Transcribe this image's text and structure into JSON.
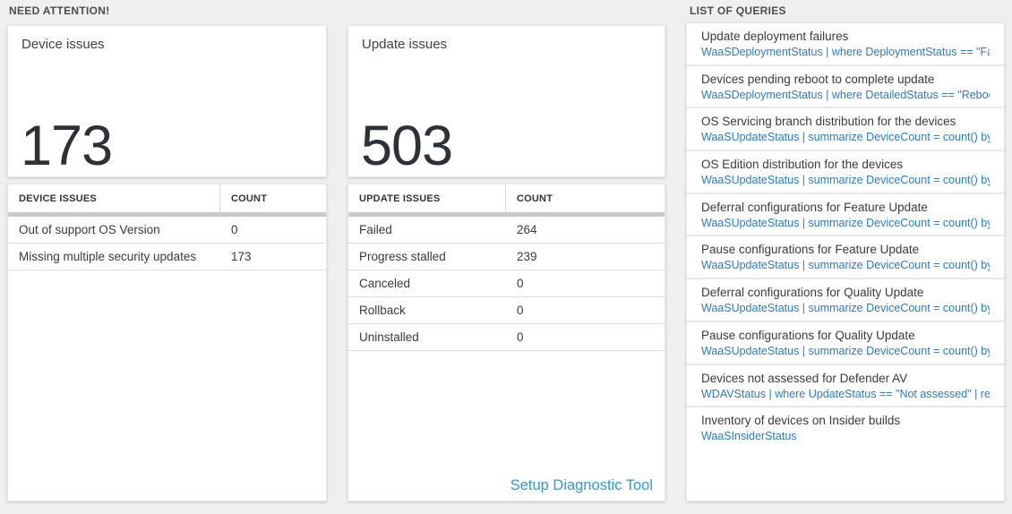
{
  "colors": {
    "background": "#f0f0f0",
    "query_blue": "#2b7bc4",
    "link_blue": "#3296d9",
    "count_dark": "#2d3138",
    "divider_gray": "#c9c9c9"
  },
  "sections": {
    "need_attention_label": "NEED ATTENTION!",
    "list_of_queries_label": "LIST OF QUERIES"
  },
  "device_card": {
    "title": "Device issues",
    "count": "173"
  },
  "update_card": {
    "title": "Update issues",
    "count": "503"
  },
  "device_table": {
    "headers": [
      "DEVICE ISSUES",
      "COUNT"
    ],
    "rows": [
      {
        "label": "Out of support OS Version",
        "count": "0"
      },
      {
        "label": "Missing multiple security updates",
        "count": "173"
      }
    ]
  },
  "update_table": {
    "headers": [
      "UPDATE ISSUES",
      "COUNT"
    ],
    "rows": [
      {
        "label": "Failed",
        "count": "264"
      },
      {
        "label": "Progress stalled",
        "count": "239"
      },
      {
        "label": "Canceled",
        "count": "0"
      },
      {
        "label": "Rollback",
        "count": "0"
      },
      {
        "label": "Uninstalled",
        "count": "0"
      }
    ],
    "footer_link": "Setup Diagnostic Tool"
  },
  "queries": {
    "items": [
      {
        "title": "Update deployment failures",
        "query": "WaaSDeploymentStatus | where DeploymentStatus == \"Failed\" |..."
      },
      {
        "title": "Devices pending reboot to complete update",
        "query": "WaaSDeploymentStatus | where DetailedStatus == \"Reboot pend..."
      },
      {
        "title": "OS Servicing branch distribution for the devices",
        "query": "WaaSUpdateStatus | summarize DeviceCount = count() by OSSer..."
      },
      {
        "title": "OS Edition distribution for the devices",
        "query": "WaaSUpdateStatus | summarize DeviceCount = count() by OSEdit..."
      },
      {
        "title": "Deferral configurations for Feature Update",
        "query": "WaaSUpdateStatus | summarize DeviceCount = count() by Featur..."
      },
      {
        "title": "Pause configurations for Feature Update",
        "query": "WaaSUpdateStatus | summarize DeviceCount = count() by Featur..."
      },
      {
        "title": "Deferral configurations for Quality Update",
        "query": "WaaSUpdateStatus | summarize DeviceCount = count() by Qualit..."
      },
      {
        "title": "Pause configurations for Quality Update",
        "query": "WaaSUpdateStatus | summarize DeviceCount = count() by Qualit..."
      },
      {
        "title": "Devices not assessed for Defender AV",
        "query": "WDAVStatus | where UpdateStatus == \"Not assessed\" | render ta..."
      },
      {
        "title": "Inventory of devices on Insider builds",
        "query": "WaaSInsiderStatus"
      }
    ]
  }
}
